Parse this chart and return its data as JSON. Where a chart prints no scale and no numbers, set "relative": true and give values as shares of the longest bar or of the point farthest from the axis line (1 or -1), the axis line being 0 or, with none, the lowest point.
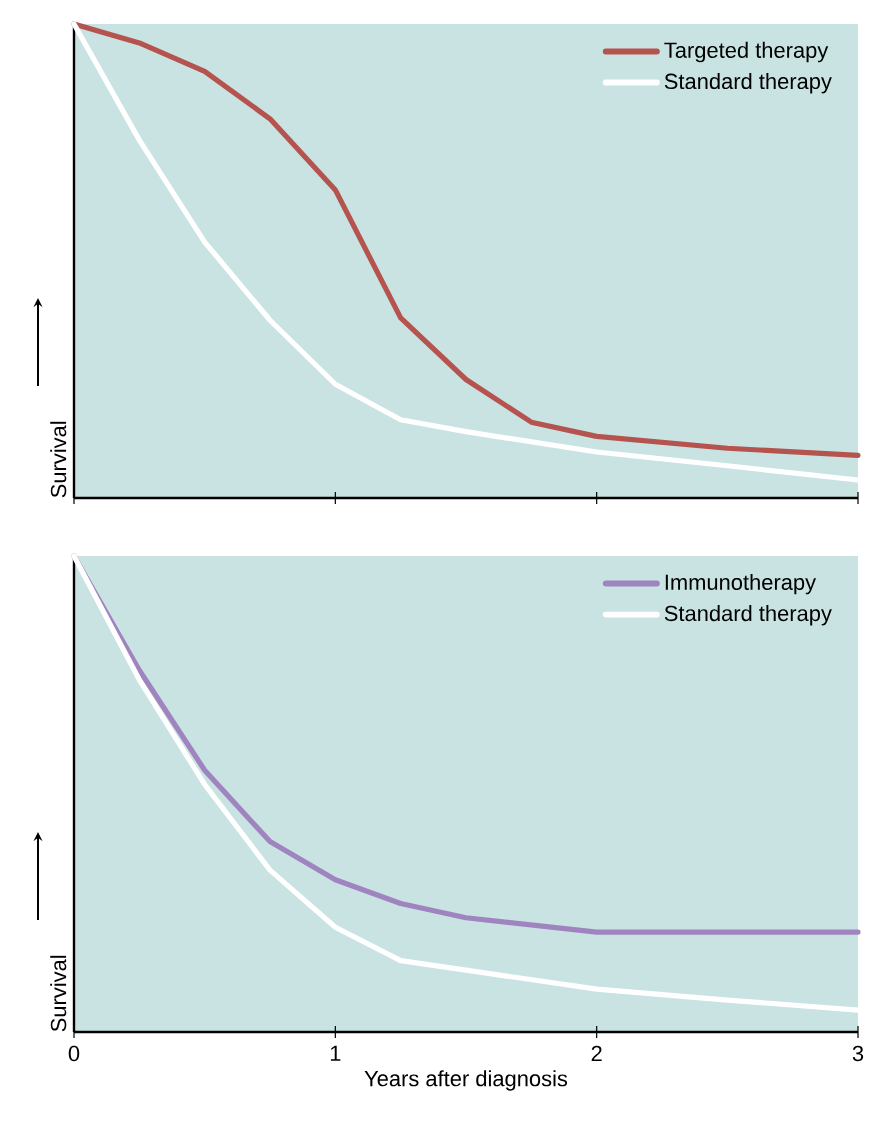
{
  "chart_data": [
    {
      "type": "line",
      "relative": true,
      "ylabel": "Survival",
      "xlim": [
        0,
        3
      ],
      "xticks": [
        0,
        1,
        2,
        3
      ],
      "tick_labels": false,
      "legend": "top right",
      "marker": "none",
      "line_style": "solid",
      "series": [
        {
          "name": "Targeted therapy",
          "color": "#b5534f",
          "x": [
            0,
            0.25,
            0.5,
            0.75,
            1,
            1.25,
            1.5,
            1.75,
            2,
            2.5,
            3
          ],
          "values": [
            1.0,
            0.96,
            0.9,
            0.8,
            0.65,
            0.38,
            0.25,
            0.16,
            0.13,
            0.105,
            0.09
          ]
        },
        {
          "name": "Standard therapy",
          "color": "#ffffff",
          "x": [
            0,
            0.25,
            0.5,
            0.75,
            1,
            1.25,
            1.5,
            2,
            2.5,
            3
          ],
          "values": [
            1.0,
            0.755,
            0.54,
            0.375,
            0.24,
            0.165,
            0.14,
            0.097,
            0.068,
            0.038
          ]
        }
      ]
    },
    {
      "type": "line",
      "relative": true,
      "ylabel": "Survival",
      "xlabel": "Years after diagnosis",
      "xlim": [
        0,
        3
      ],
      "xticks": [
        0,
        1,
        2,
        3
      ],
      "tick_labels": "x",
      "legend": "top right",
      "marker": "none",
      "line_style": "solid",
      "series": [
        {
          "name": "Immunotherapy",
          "color": "#a084c0",
          "x": [
            0,
            0.25,
            0.5,
            0.75,
            1,
            1.25,
            1.5,
            2,
            2.5,
            3
          ],
          "values": [
            1.0,
            0.76,
            0.55,
            0.4,
            0.32,
            0.27,
            0.24,
            0.21,
            0.21,
            0.21
          ]
        },
        {
          "name": "Standard therapy",
          "color": "#ffffff",
          "x": [
            0,
            0.25,
            0.5,
            0.75,
            1,
            1.25,
            1.5,
            2,
            2.5,
            3
          ],
          "values": [
            1.0,
            0.74,
            0.52,
            0.34,
            0.22,
            0.15,
            0.13,
            0.09,
            0.067,
            0.046
          ]
        }
      ]
    }
  ]
}
